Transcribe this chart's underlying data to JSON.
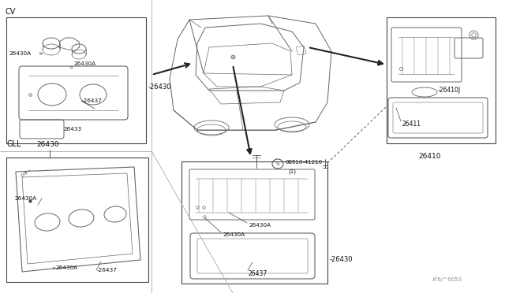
{
  "bg_color": "#ffffff",
  "lc": "#444444",
  "lc2": "#666666",
  "fig_width": 6.4,
  "fig_height": 3.72,
  "watermark": "A¹6/\u00020053",
  "labels": {
    "CV": "CV",
    "GLL": "GLL",
    "26430_right_of_cv": "-26430",
    "26430A_cv_1": "26430A",
    "26430A_cv_2": "26430A",
    "26437_cv": "-26437",
    "26433_cv": "26433",
    "26430_gll": "26430",
    "26430A_gll_1": "26430A",
    "26430A_gll_2": "26430A",
    "26437_gll": "-26437",
    "26430A_bc_1": "26430A",
    "26430A_bc_2": "26430A",
    "26437_bc": "26437",
    "26430_bc_right": "-26430",
    "26410J": "-26410J",
    "26411": "26411",
    "26410": "26410",
    "screw_label": "08510-41210",
    "screw_sub": "(1)"
  }
}
